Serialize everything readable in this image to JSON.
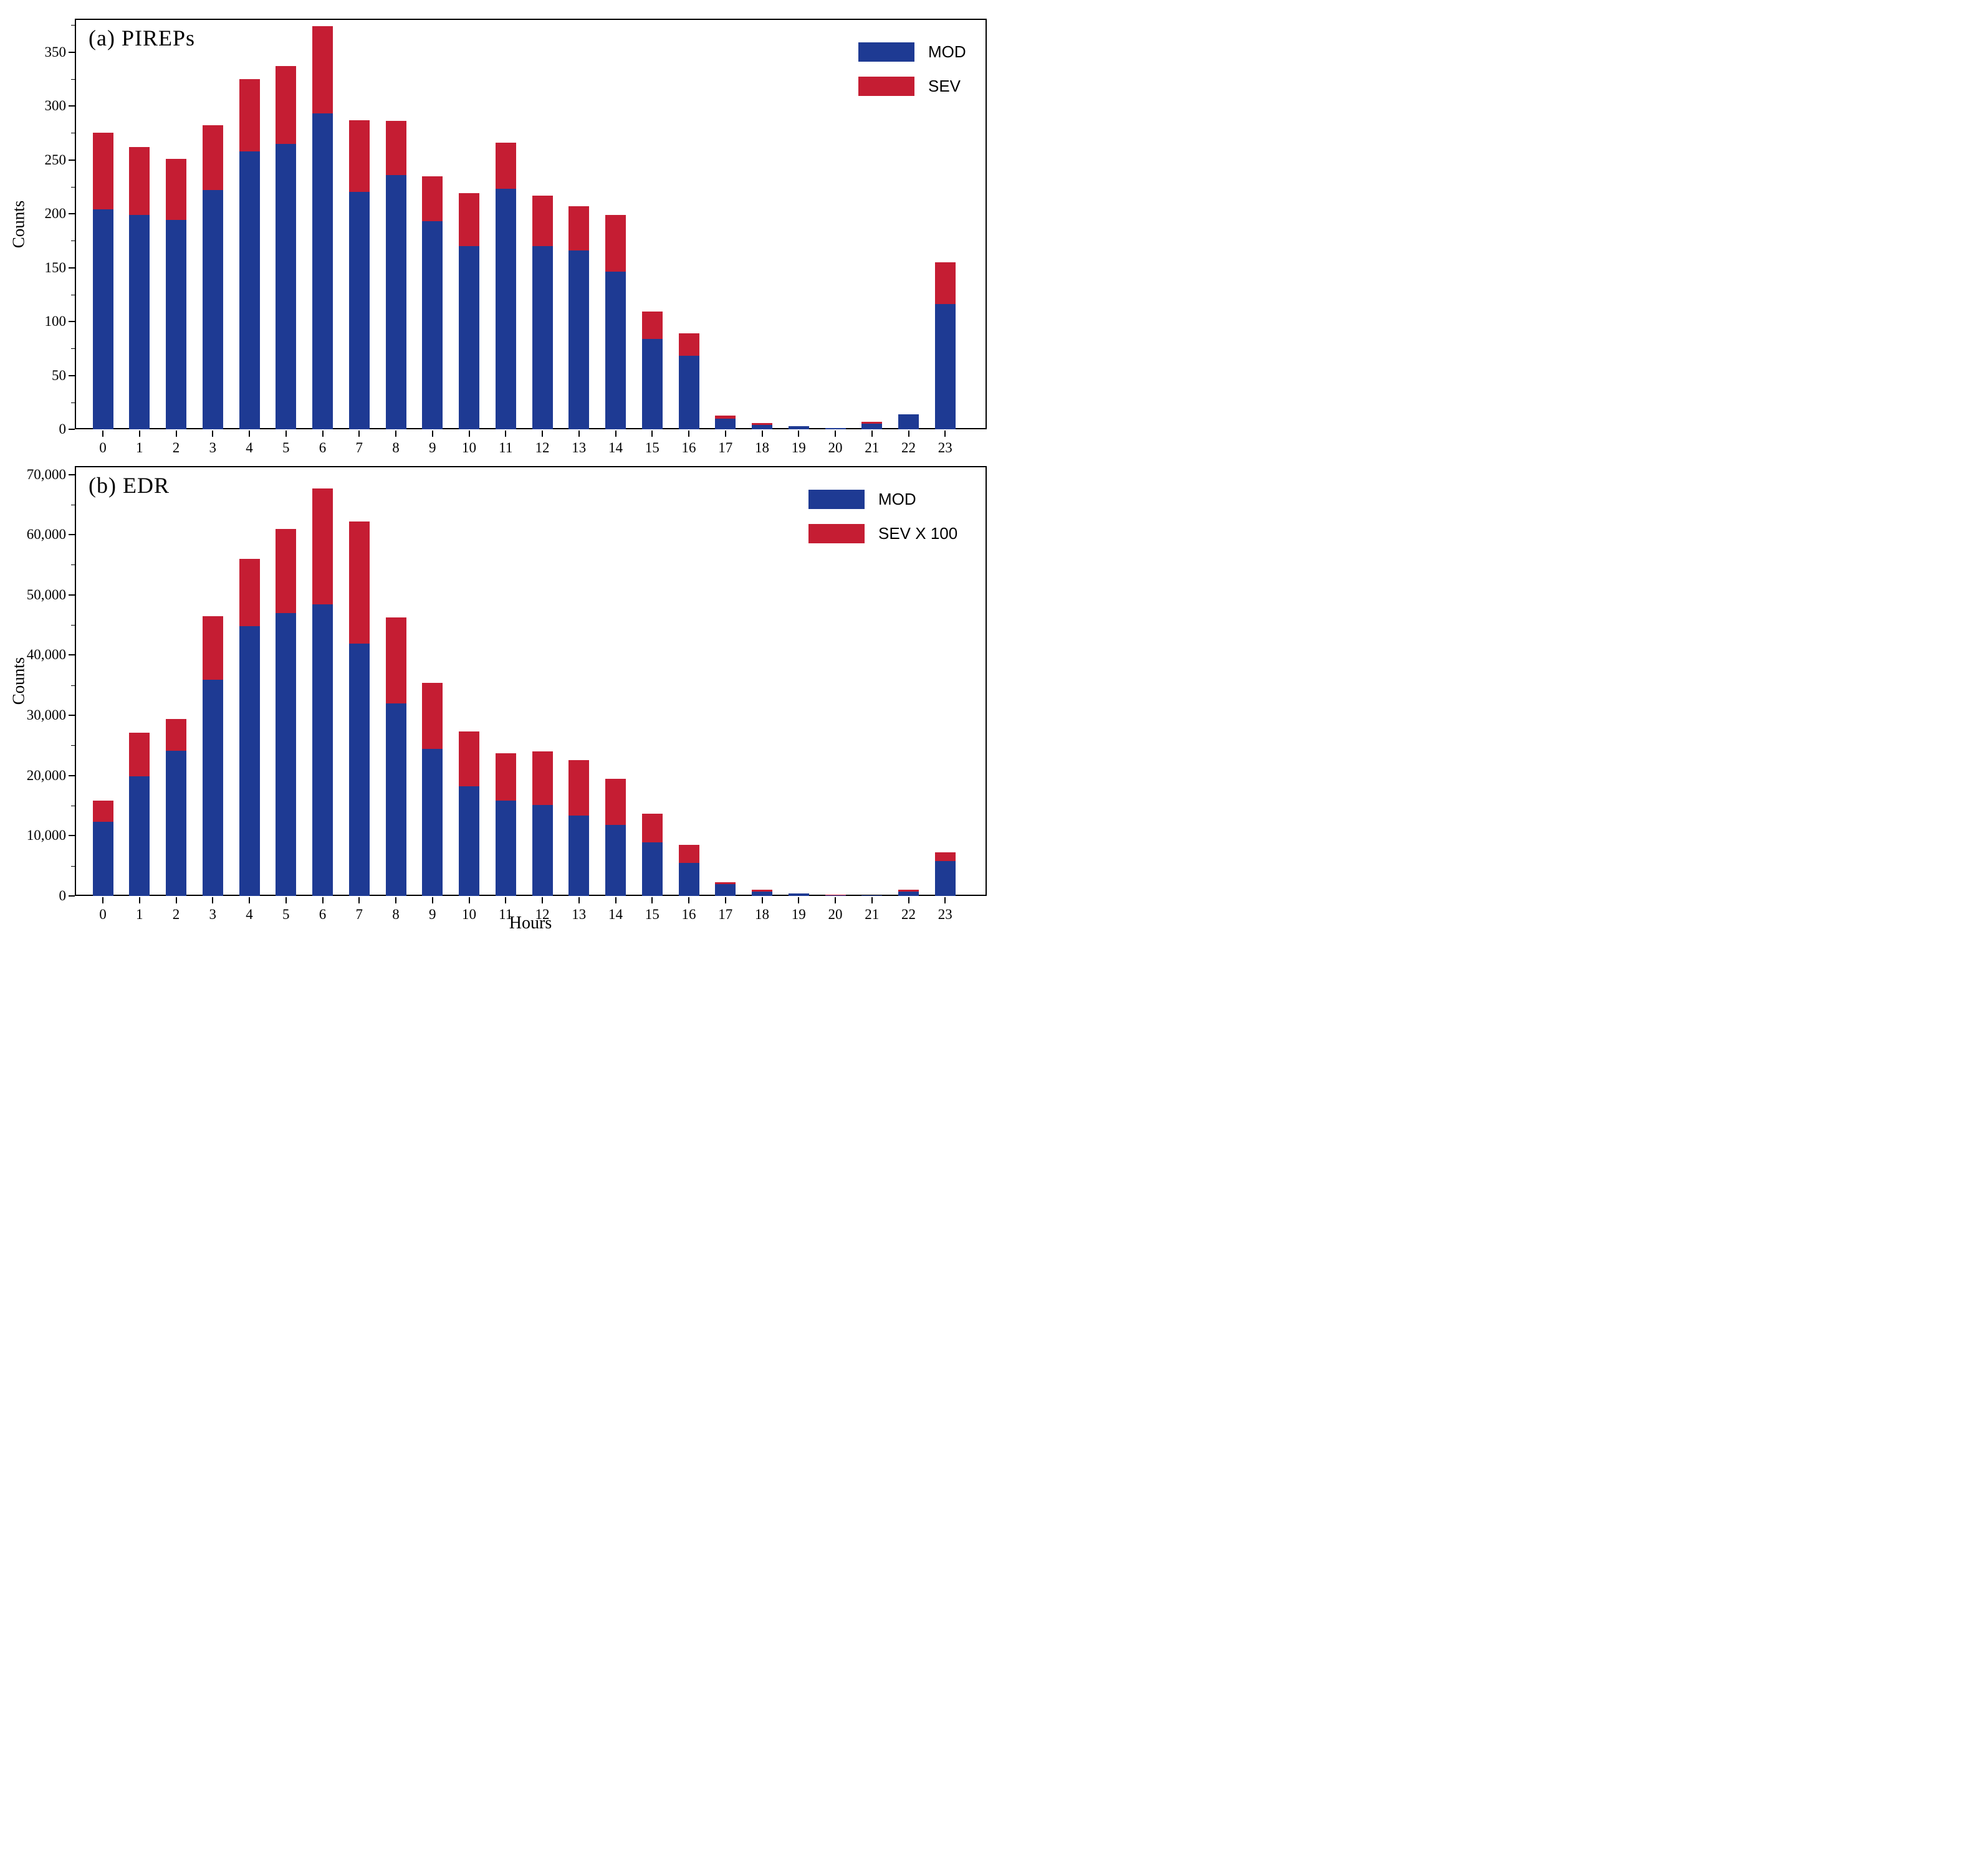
{
  "figure": {
    "background": "#ffffff"
  },
  "colors": {
    "mod_blue": "#1e3a93",
    "sev_red": "#c51d33",
    "axis_black": "#000000"
  },
  "chart_data": [
    {
      "type": "bar",
      "stacked": true,
      "id": "a",
      "title": "(a) PIREPs",
      "ylabel": "Counts",
      "xlabel": "",
      "legend_position": "top-right",
      "grid": false,
      "categories": [
        "0",
        "1",
        "2",
        "3",
        "4",
        "5",
        "6",
        "7",
        "8",
        "9",
        "10",
        "11",
        "12",
        "13",
        "14",
        "15",
        "16",
        "17",
        "18",
        "19",
        "20",
        "21",
        "22",
        "23"
      ],
      "series": [
        {
          "name": "MOD",
          "color_key": "mod_blue",
          "values": [
            204,
            199,
            194,
            222,
            258,
            265,
            293,
            220,
            236,
            193,
            170,
            223,
            170,
            166,
            146,
            84,
            68,
            10,
            4,
            3,
            1,
            5,
            14,
            116
          ]
        },
        {
          "name": "SEV",
          "color_key": "sev_red",
          "values": [
            71,
            63,
            57,
            60,
            67,
            72,
            81,
            67,
            50,
            42,
            49,
            43,
            47,
            41,
            53,
            25,
            21,
            3,
            2,
            0,
            0,
            2,
            0,
            39
          ]
        }
      ],
      "ylim": [
        0,
        381
      ],
      "yticks": [
        0,
        50,
        100,
        150,
        200,
        250,
        300,
        350
      ],
      "ytick_labels": [
        "0",
        "50",
        "100",
        "150",
        "200",
        "250",
        "300",
        "350"
      ],
      "yminor_step": 25,
      "legend": [
        {
          "label": "MOD",
          "color_key": "mod_blue"
        },
        {
          "label": "SEV",
          "color_key": "sev_red"
        }
      ]
    },
    {
      "type": "bar",
      "stacked": true,
      "id": "b",
      "title": "(b) EDR",
      "ylabel": "Counts",
      "xlabel": "Hours",
      "legend_position": "top-right",
      "grid": false,
      "categories": [
        "0",
        "1",
        "2",
        "3",
        "4",
        "5",
        "6",
        "7",
        "8",
        "9",
        "10",
        "11",
        "12",
        "13",
        "14",
        "15",
        "16",
        "17",
        "18",
        "19",
        "20",
        "21",
        "22",
        "23"
      ],
      "series": [
        {
          "name": "MOD",
          "color_key": "mod_blue",
          "values": [
            12300,
            19900,
            24100,
            35900,
            44800,
            47000,
            48400,
            41900,
            32000,
            24400,
            18200,
            15800,
            15100,
            13400,
            11800,
            8900,
            5500,
            2000,
            700,
            400,
            150,
            150,
            750,
            5800
          ]
        },
        {
          "name": "SEV X 100",
          "color_key": "sev_red",
          "values": [
            3500,
            7200,
            5300,
            10600,
            11200,
            14000,
            19300,
            20300,
            14300,
            11000,
            9100,
            7900,
            8900,
            9200,
            7700,
            4800,
            3000,
            300,
            300,
            0,
            100,
            0,
            300,
            1400
          ]
        }
      ],
      "ylim": [
        0,
        71400
      ],
      "yticks": [
        0,
        10000,
        20000,
        30000,
        40000,
        50000,
        60000,
        70000
      ],
      "ytick_labels": [
        "0",
        "10,000",
        "20,000",
        "30,000",
        "40,000",
        "50,000",
        "60,000",
        "70,000"
      ],
      "yminor_step": 5000,
      "legend": [
        {
          "label": "MOD",
          "color_key": "mod_blue"
        },
        {
          "label": "SEV X 100",
          "color_key": "sev_red"
        }
      ]
    }
  ]
}
